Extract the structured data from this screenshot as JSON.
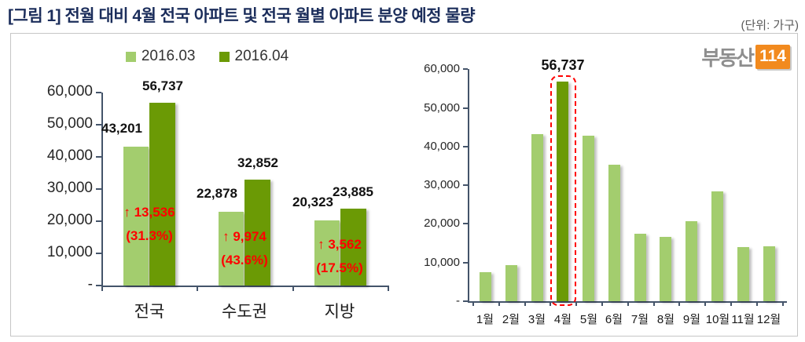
{
  "title": "[그림 1] 전월 대비 4월 전국 아파트 및 전국 월별 아파트 분양 예정 물량",
  "unit_label": "(단위: 가구)",
  "logo": {
    "text": "부동산",
    "badge": "114"
  },
  "colors": {
    "light_green": "#A3CD6E",
    "dark_green": "#6B9A05",
    "red": "#FF0000",
    "title_navy": "#1B2D5B",
    "axis": "#44546A",
    "panel_border": "#C6C6C6",
    "logo_orange": "#F28A1E",
    "logo_gray": "#8E8E8E",
    "label_black": "#111111"
  },
  "chart_data": [
    {
      "type": "bar",
      "title": "",
      "categories": [
        "전국",
        "수도권",
        "지방"
      ],
      "series": [
        {
          "name": "2016.03",
          "values": [
            43201,
            22878,
            20323
          ]
        },
        {
          "name": "2016.04",
          "values": [
            56737,
            32852,
            23885
          ]
        }
      ],
      "value_labels": {
        "s0": [
          "43,201",
          "22,878",
          "20,323"
        ],
        "s1": [
          "56,737",
          "32,852",
          "23,885"
        ]
      },
      "annotations": [
        {
          "delta": "↑ 13,536",
          "pct": "(31.3%)"
        },
        {
          "delta": "↑ 9,974",
          "pct": "(43.6%)"
        },
        {
          "delta": "↑ 3,562",
          "pct": "(17.5%)"
        }
      ],
      "ylim": [
        0,
        60000
      ],
      "ytick_labels": [
        "60,000",
        "50,000",
        "40,000",
        "30,000",
        "20,000",
        "10,000",
        "-"
      ],
      "grid": false,
      "legend_position": "top"
    },
    {
      "type": "bar",
      "title": "",
      "categories": [
        "1월",
        "2월",
        "3월",
        "4월",
        "5월",
        "6월",
        "7월",
        "8월",
        "9월",
        "10월",
        "11월",
        "12월"
      ],
      "values": [
        7500,
        9300,
        43200,
        56737,
        42800,
        35200,
        17400,
        16600,
        20700,
        28400,
        14000,
        14300
      ],
      "highlight_index": 3,
      "highlight_label": "56,737",
      "ylim": [
        0,
        60000
      ],
      "ytick_labels": [
        "60,000",
        "50,000",
        "40,000",
        "30,000",
        "20,000",
        "10,000",
        "-"
      ],
      "grid": false,
      "legend_position": "none"
    }
  ]
}
